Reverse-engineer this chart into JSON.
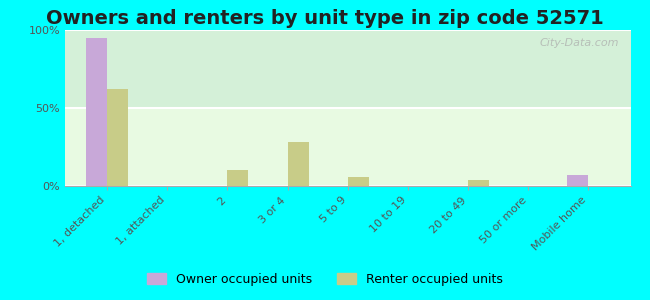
{
  "title": "Owners and renters by unit type in zip code 52571",
  "categories": [
    "1, detached",
    "1, attached",
    "2",
    "3 or 4",
    "5 to 9",
    "10 to 19",
    "20 to 49",
    "50 or more",
    "Mobile home"
  ],
  "owner_values": [
    95,
    0,
    0,
    0,
    0,
    0,
    0,
    0,
    7
  ],
  "renter_values": [
    62,
    0,
    10,
    28,
    6,
    0,
    4,
    0,
    0
  ],
  "owner_color": "#c8a8d8",
  "renter_color": "#c8cc88",
  "background_color": "#00ffff",
  "plot_bg_color_top": "#f0fff0",
  "plot_bg_color_bottom": "#e8f5e0",
  "watermark": "City-Data.com",
  "ylim": [
    0,
    100
  ],
  "yticks": [
    0,
    50,
    100
  ],
  "ytick_labels": [
    "0%",
    "50%",
    "100%"
  ],
  "bar_width": 0.35,
  "title_fontsize": 14,
  "tick_fontsize": 8,
  "legend_fontsize": 9
}
